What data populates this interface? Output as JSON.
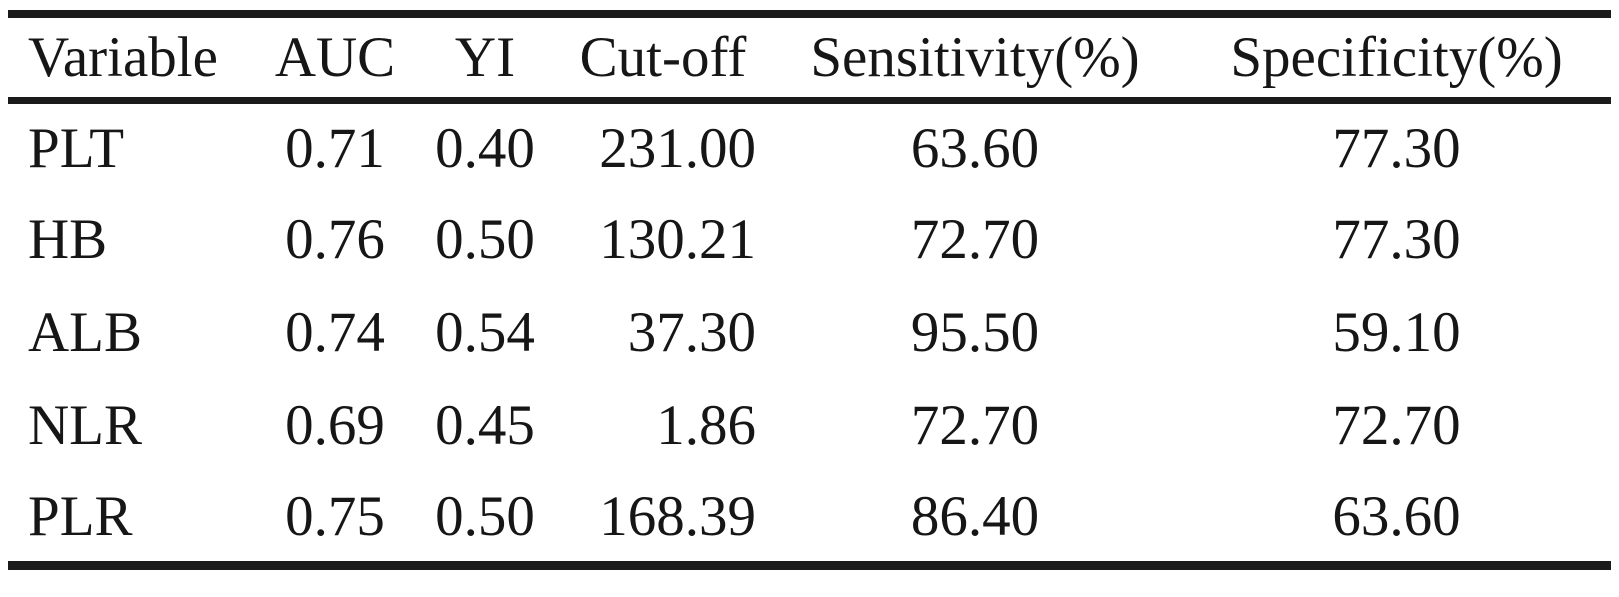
{
  "table": {
    "columns": [
      {
        "label": "Variable"
      },
      {
        "label": "AUC"
      },
      {
        "label": "YI"
      },
      {
        "label": "Cut-off"
      },
      {
        "label": "Sensitivity(%)"
      },
      {
        "label": "Specificity(%)"
      }
    ],
    "rows": [
      [
        "PLT",
        "0.71",
        "0.40",
        "231.00",
        "63.60",
        "77.30"
      ],
      [
        "HB",
        "0.76",
        "0.50",
        "130.21",
        "72.70",
        "77.30"
      ],
      [
        "ALB",
        "0.74",
        "0.54",
        "37.30",
        "95.50",
        "59.10"
      ],
      [
        "NLR",
        "0.69",
        "0.45",
        "1.86",
        "72.70",
        "72.70"
      ],
      [
        "PLR",
        "0.75",
        "0.50",
        "168.39",
        "86.40",
        "63.60"
      ]
    ]
  },
  "colors": {
    "text": "#161616",
    "rule": "#1b1b1b",
    "background": "#ffffff"
  }
}
